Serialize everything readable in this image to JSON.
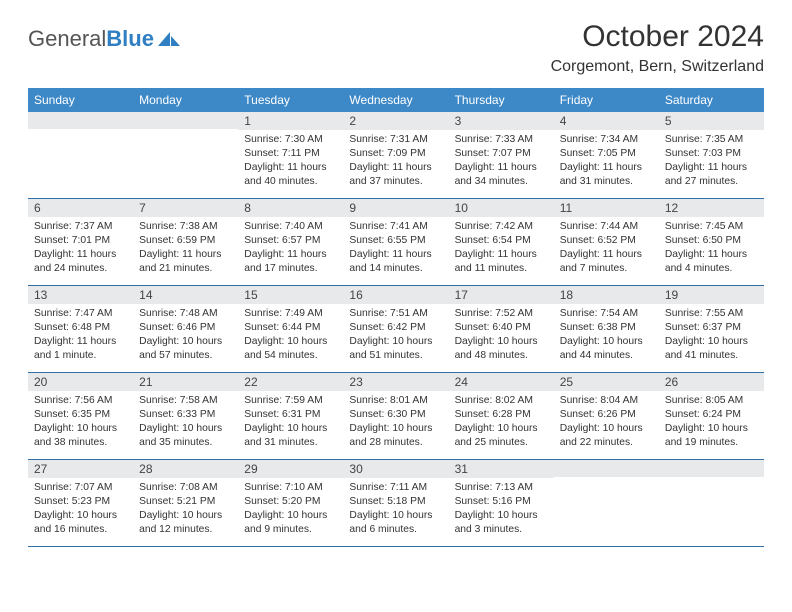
{
  "logo": {
    "text1": "General",
    "text2": "Blue"
  },
  "title": "October 2024",
  "location": "Corgemont, Bern, Switzerland",
  "colors": {
    "header_bg": "#3d88c7",
    "row_border": "#2f6fa8",
    "daynum_bg": "#e8e9ea",
    "logo_blue": "#2f7fc2"
  },
  "weekdays": [
    "Sunday",
    "Monday",
    "Tuesday",
    "Wednesday",
    "Thursday",
    "Friday",
    "Saturday"
  ],
  "weeks": [
    [
      {
        "n": "",
        "sr": "",
        "ss": "",
        "dl": ""
      },
      {
        "n": "",
        "sr": "",
        "ss": "",
        "dl": ""
      },
      {
        "n": "1",
        "sr": "Sunrise: 7:30 AM",
        "ss": "Sunset: 7:11 PM",
        "dl": "Daylight: 11 hours and 40 minutes."
      },
      {
        "n": "2",
        "sr": "Sunrise: 7:31 AM",
        "ss": "Sunset: 7:09 PM",
        "dl": "Daylight: 11 hours and 37 minutes."
      },
      {
        "n": "3",
        "sr": "Sunrise: 7:33 AM",
        "ss": "Sunset: 7:07 PM",
        "dl": "Daylight: 11 hours and 34 minutes."
      },
      {
        "n": "4",
        "sr": "Sunrise: 7:34 AM",
        "ss": "Sunset: 7:05 PM",
        "dl": "Daylight: 11 hours and 31 minutes."
      },
      {
        "n": "5",
        "sr": "Sunrise: 7:35 AM",
        "ss": "Sunset: 7:03 PM",
        "dl": "Daylight: 11 hours and 27 minutes."
      }
    ],
    [
      {
        "n": "6",
        "sr": "Sunrise: 7:37 AM",
        "ss": "Sunset: 7:01 PM",
        "dl": "Daylight: 11 hours and 24 minutes."
      },
      {
        "n": "7",
        "sr": "Sunrise: 7:38 AM",
        "ss": "Sunset: 6:59 PM",
        "dl": "Daylight: 11 hours and 21 minutes."
      },
      {
        "n": "8",
        "sr": "Sunrise: 7:40 AM",
        "ss": "Sunset: 6:57 PM",
        "dl": "Daylight: 11 hours and 17 minutes."
      },
      {
        "n": "9",
        "sr": "Sunrise: 7:41 AM",
        "ss": "Sunset: 6:55 PM",
        "dl": "Daylight: 11 hours and 14 minutes."
      },
      {
        "n": "10",
        "sr": "Sunrise: 7:42 AM",
        "ss": "Sunset: 6:54 PM",
        "dl": "Daylight: 11 hours and 11 minutes."
      },
      {
        "n": "11",
        "sr": "Sunrise: 7:44 AM",
        "ss": "Sunset: 6:52 PM",
        "dl": "Daylight: 11 hours and 7 minutes."
      },
      {
        "n": "12",
        "sr": "Sunrise: 7:45 AM",
        "ss": "Sunset: 6:50 PM",
        "dl": "Daylight: 11 hours and 4 minutes."
      }
    ],
    [
      {
        "n": "13",
        "sr": "Sunrise: 7:47 AM",
        "ss": "Sunset: 6:48 PM",
        "dl": "Daylight: 11 hours and 1 minute."
      },
      {
        "n": "14",
        "sr": "Sunrise: 7:48 AM",
        "ss": "Sunset: 6:46 PM",
        "dl": "Daylight: 10 hours and 57 minutes."
      },
      {
        "n": "15",
        "sr": "Sunrise: 7:49 AM",
        "ss": "Sunset: 6:44 PM",
        "dl": "Daylight: 10 hours and 54 minutes."
      },
      {
        "n": "16",
        "sr": "Sunrise: 7:51 AM",
        "ss": "Sunset: 6:42 PM",
        "dl": "Daylight: 10 hours and 51 minutes."
      },
      {
        "n": "17",
        "sr": "Sunrise: 7:52 AM",
        "ss": "Sunset: 6:40 PM",
        "dl": "Daylight: 10 hours and 48 minutes."
      },
      {
        "n": "18",
        "sr": "Sunrise: 7:54 AM",
        "ss": "Sunset: 6:38 PM",
        "dl": "Daylight: 10 hours and 44 minutes."
      },
      {
        "n": "19",
        "sr": "Sunrise: 7:55 AM",
        "ss": "Sunset: 6:37 PM",
        "dl": "Daylight: 10 hours and 41 minutes."
      }
    ],
    [
      {
        "n": "20",
        "sr": "Sunrise: 7:56 AM",
        "ss": "Sunset: 6:35 PM",
        "dl": "Daylight: 10 hours and 38 minutes."
      },
      {
        "n": "21",
        "sr": "Sunrise: 7:58 AM",
        "ss": "Sunset: 6:33 PM",
        "dl": "Daylight: 10 hours and 35 minutes."
      },
      {
        "n": "22",
        "sr": "Sunrise: 7:59 AM",
        "ss": "Sunset: 6:31 PM",
        "dl": "Daylight: 10 hours and 31 minutes."
      },
      {
        "n": "23",
        "sr": "Sunrise: 8:01 AM",
        "ss": "Sunset: 6:30 PM",
        "dl": "Daylight: 10 hours and 28 minutes."
      },
      {
        "n": "24",
        "sr": "Sunrise: 8:02 AM",
        "ss": "Sunset: 6:28 PM",
        "dl": "Daylight: 10 hours and 25 minutes."
      },
      {
        "n": "25",
        "sr": "Sunrise: 8:04 AM",
        "ss": "Sunset: 6:26 PM",
        "dl": "Daylight: 10 hours and 22 minutes."
      },
      {
        "n": "26",
        "sr": "Sunrise: 8:05 AM",
        "ss": "Sunset: 6:24 PM",
        "dl": "Daylight: 10 hours and 19 minutes."
      }
    ],
    [
      {
        "n": "27",
        "sr": "Sunrise: 7:07 AM",
        "ss": "Sunset: 5:23 PM",
        "dl": "Daylight: 10 hours and 16 minutes."
      },
      {
        "n": "28",
        "sr": "Sunrise: 7:08 AM",
        "ss": "Sunset: 5:21 PM",
        "dl": "Daylight: 10 hours and 12 minutes."
      },
      {
        "n": "29",
        "sr": "Sunrise: 7:10 AM",
        "ss": "Sunset: 5:20 PM",
        "dl": "Daylight: 10 hours and 9 minutes."
      },
      {
        "n": "30",
        "sr": "Sunrise: 7:11 AM",
        "ss": "Sunset: 5:18 PM",
        "dl": "Daylight: 10 hours and 6 minutes."
      },
      {
        "n": "31",
        "sr": "Sunrise: 7:13 AM",
        "ss": "Sunset: 5:16 PM",
        "dl": "Daylight: 10 hours and 3 minutes."
      },
      {
        "n": "",
        "sr": "",
        "ss": "",
        "dl": ""
      },
      {
        "n": "",
        "sr": "",
        "ss": "",
        "dl": ""
      }
    ]
  ]
}
